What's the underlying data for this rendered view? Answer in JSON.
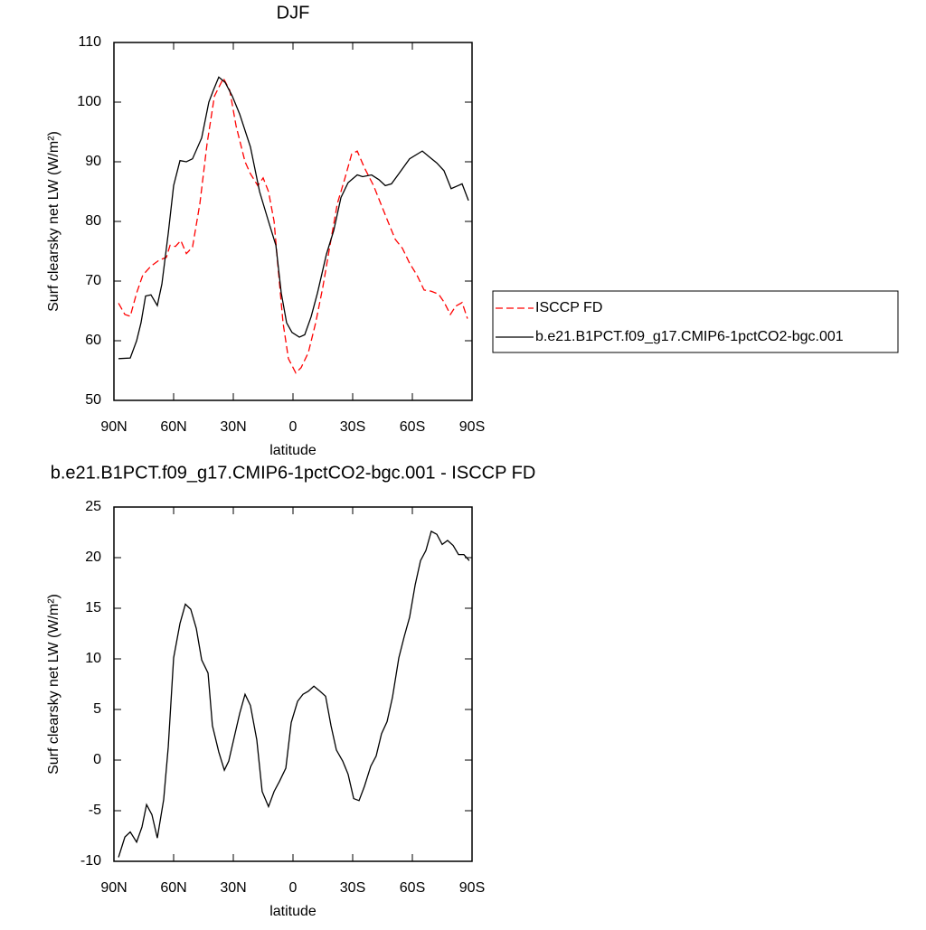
{
  "chart_data": [
    {
      "type": "line",
      "title": "DJF",
      "xlabel": "latitude",
      "ylabel": "Surf clearsky net LW (W/m²)",
      "xlim": [
        90,
        -90
      ],
      "xticks": [
        {
          "value": 90,
          "label": "90N"
        },
        {
          "value": 60,
          "label": "60N"
        },
        {
          "value": 30,
          "label": "30N"
        },
        0,
        {
          "value": -30,
          "label": "30S"
        },
        {
          "value": -60,
          "label": "60S"
        },
        {
          "value": -90,
          "label": "90S"
        }
      ],
      "ylim": [
        50,
        110
      ],
      "yticks": [
        50,
        60,
        70,
        80,
        90,
        100,
        110
      ],
      "legend": "right",
      "series": [
        {
          "name": "ISCCP FD",
          "color": "#ff0000",
          "style": "dashed",
          "x": [
            87.7,
            84.5,
            81.8,
            78.6,
            75.5,
            71.4,
            67.3,
            63.6,
            61.8,
            59.1,
            56.4,
            53.6,
            50.5,
            46.8,
            43.2,
            39.5,
            35,
            31.8,
            28.6,
            24.1,
            21.4,
            17.7,
            15,
            12.3,
            9.5,
            7.7,
            5,
            2.3,
            -1.4,
            -4.1,
            -7.7,
            -11.4,
            -15,
            -18.6,
            -22.3,
            -25.9,
            -29.5,
            -32.3,
            -35.9,
            -40.5,
            -44.1,
            -47.7,
            -51.4,
            -55,
            -58.6,
            -62.3,
            -65.9,
            -69.5,
            -73.2,
            -75.9,
            -79.1,
            -81.8,
            -85,
            -87.7
          ],
          "values": [
            66.3,
            64.4,
            64.1,
            68,
            71,
            72.5,
            73.5,
            74,
            76,
            75.8,
            76.8,
            74.6,
            75.7,
            83,
            93,
            101,
            104,
            102,
            96,
            90,
            88,
            86,
            87.3,
            85,
            80,
            73,
            63,
            57,
            54.6,
            55.5,
            58,
            63,
            69,
            76,
            83,
            87,
            91.3,
            91.8,
            89,
            86,
            83,
            80,
            77,
            75.5,
            73,
            71,
            68.5,
            68.3,
            67.8,
            66.5,
            64.4,
            65.8,
            66.4,
            63.7
          ]
        },
        {
          "name": "b.e21.B1PCT.f09_g17.CMIP6-1pctCO2-bgc.001",
          "color": "#000000",
          "style": "solid",
          "x": [
            87.7,
            81.8,
            78.6,
            76.4,
            74.1,
            71.4,
            68.2,
            65.9,
            62.7,
            60,
            56.8,
            53.6,
            50.5,
            45.9,
            42.3,
            40,
            37.3,
            34.1,
            30.5,
            26.8,
            21.4,
            16.8,
            12.3,
            8.6,
            5.9,
            3.2,
            0.5,
            -3.2,
            -5.9,
            -9.1,
            -12.3,
            -16.8,
            -20.5,
            -24.1,
            -27.7,
            -32.3,
            -35,
            -39.5,
            -43.2,
            -46.4,
            -49.5,
            -53.2,
            -58.6,
            -65,
            -68.6,
            -72.3,
            -75.9,
            -79.5,
            -85,
            -88.2
          ],
          "values": [
            57,
            57.1,
            60,
            63,
            67.5,
            67.7,
            65.9,
            69.5,
            78,
            86,
            90.2,
            90,
            90.5,
            94,
            100,
            102,
            104.2,
            103.3,
            101,
            98,
            92.5,
            85,
            80,
            76,
            68,
            63,
            61.4,
            60.6,
            61,
            64,
            68,
            74.5,
            78.5,
            84,
            86.5,
            87.8,
            87.5,
            87.8,
            87,
            86,
            86.3,
            88,
            90.5,
            91.8,
            90.8,
            89.8,
            88.5,
            85.5,
            86.3,
            83.5
          ]
        }
      ]
    },
    {
      "type": "line",
      "title": "b.e21.B1PCT.f09_g17.CMIP6-1pctCO2-bgc.001 - ISCCP FD",
      "xlabel": "latitude",
      "ylabel": "Surf clearsky net LW (W/m²)",
      "xlim": [
        90,
        -90
      ],
      "xticks": [
        {
          "value": 90,
          "label": "90N"
        },
        {
          "value": 60,
          "label": "60N"
        },
        {
          "value": 30,
          "label": "30N"
        },
        0,
        {
          "value": -30,
          "label": "30S"
        },
        {
          "value": -60,
          "label": "60S"
        },
        {
          "value": -90,
          "label": "90S"
        }
      ],
      "ylim": [
        -10,
        25
      ],
      "yticks": [
        -10,
        -5,
        0,
        5,
        10,
        15,
        20,
        25
      ],
      "series": [
        {
          "color": "#000000",
          "style": "solid",
          "x": [
            87.7,
            84.5,
            81.8,
            78.6,
            75.9,
            73.6,
            70.9,
            68.2,
            65,
            62.7,
            60,
            56.8,
            54.1,
            51.4,
            48.6,
            45.9,
            42.7,
            40.5,
            37.3,
            34.5,
            32.3,
            29.5,
            26.8,
            24.1,
            21.4,
            18.2,
            15.5,
            12.3,
            9.5,
            6.8,
            3.6,
            0.9,
            -2.3,
            -5,
            -7.7,
            -10.5,
            -13.6,
            -16.4,
            -19.1,
            -21.8,
            -25,
            -27.7,
            -30.5,
            -33.2,
            -35.9,
            -39.1,
            -41.8,
            -44.5,
            -47.3,
            -50,
            -53.2,
            -55.9,
            -58.6,
            -61.4,
            -64.1,
            -66.8,
            -69.5,
            -72.3,
            -75,
            -77.7,
            -80.5,
            -83.2,
            -85.9,
            -88.6
          ],
          "values": [
            -9.6,
            -7.6,
            -7.1,
            -8.1,
            -6.6,
            -4.4,
            -5.4,
            -7.7,
            -3.9,
            1.3,
            10.1,
            13.5,
            15.4,
            14.9,
            13,
            9.9,
            8.6,
            3.4,
            0.8,
            -1,
            -0.1,
            2.3,
            4.6,
            6.5,
            5.4,
            2,
            -3.1,
            -4.6,
            -3.1,
            -2.1,
            -0.8,
            3.7,
            5.8,
            6.5,
            6.8,
            7.3,
            6.8,
            6.3,
            3.4,
            1,
            -0.1,
            -1.4,
            -3.8,
            -4,
            -2.6,
            -0.6,
            0.4,
            2.6,
            3.8,
            6.2,
            10.1,
            12.2,
            14.1,
            17.3,
            19.7,
            20.7,
            22.6,
            22.3,
            21.3,
            21.7,
            21.2,
            20.3,
            20.3,
            19.7
          ]
        }
      ]
    }
  ]
}
